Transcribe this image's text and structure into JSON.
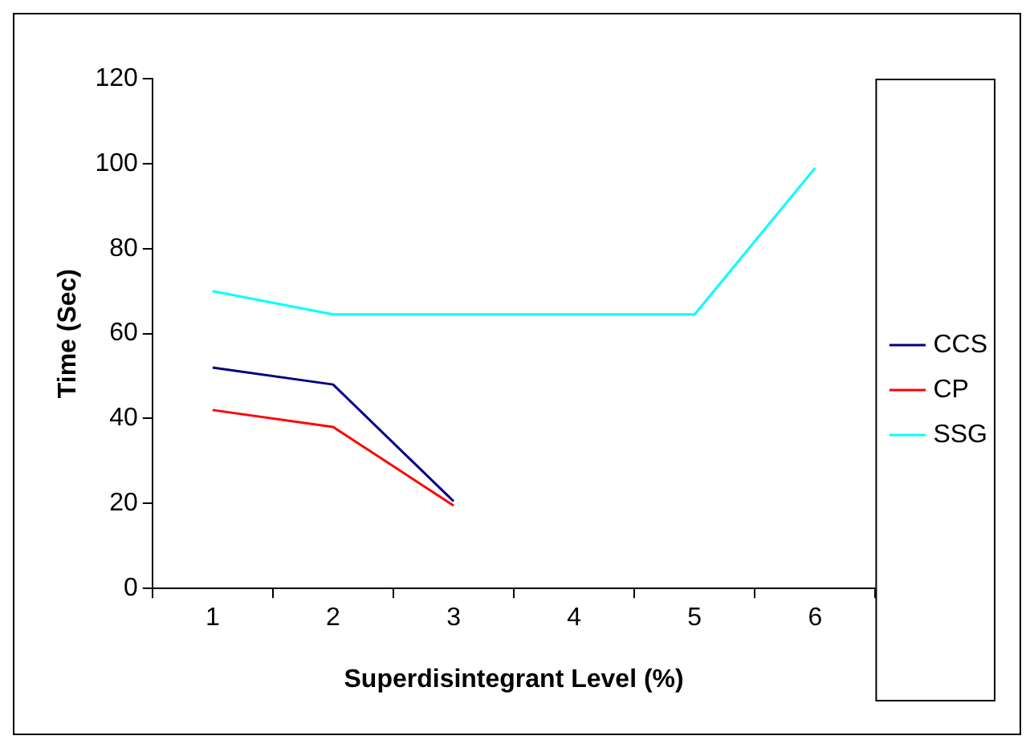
{
  "chart_data": {
    "type": "line",
    "xlabel": "Superdisintegrant Level (%)",
    "ylabel": "Time (Sec)",
    "categories": [
      "1",
      "2",
      "3",
      "4",
      "5",
      "6"
    ],
    "series": [
      {
        "name": "CCS",
        "color": "#000080",
        "values": [
          52,
          48,
          20.5,
          null,
          null,
          null
        ]
      },
      {
        "name": "CP",
        "color": "#ff0000",
        "values": [
          42,
          38,
          19.5,
          null,
          null,
          null
        ]
      },
      {
        "name": "SSG",
        "color": "#00ffff",
        "values": [
          70,
          64.5,
          64.5,
          64.5,
          64.5,
          99
        ]
      }
    ],
    "ylim": [
      0,
      120
    ],
    "yticks": [
      0,
      20,
      40,
      60,
      80,
      100,
      120
    ],
    "grid": false,
    "legend": "right",
    "marker": "none",
    "line_style": "solid"
  }
}
